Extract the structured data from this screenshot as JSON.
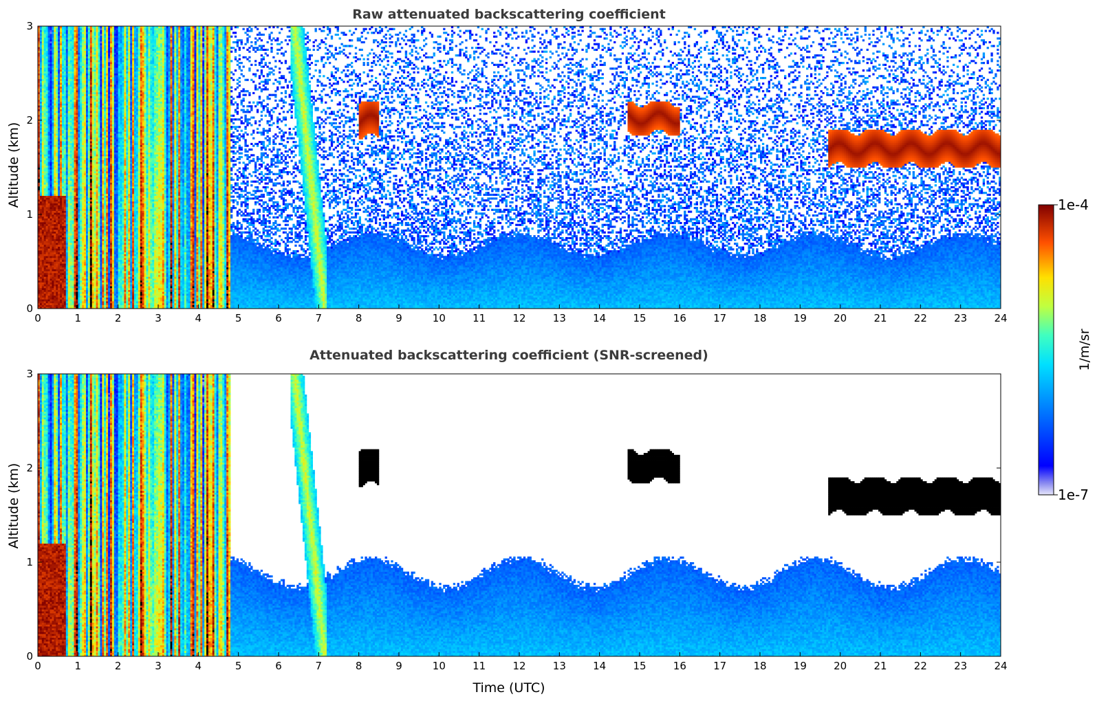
{
  "chart_data": [
    {
      "type": "heatmap",
      "title": "Raw attenuated backscattering coefficient",
      "xlabel": "",
      "ylabel": "Altitude (km)",
      "xlim": [
        0,
        24
      ],
      "ylim": [
        0,
        3
      ],
      "xticks": [
        "0",
        "1",
        "2",
        "3",
        "4",
        "5",
        "6",
        "7",
        "8",
        "9",
        "10",
        "11",
        "12",
        "13",
        "14",
        "15",
        "16",
        "17",
        "18",
        "19",
        "20",
        "21",
        "22",
        "23",
        "24"
      ],
      "yticks": [
        "0",
        "1",
        "2",
        "3"
      ],
      "grid": false,
      "screened": false,
      "features": [
        {
          "kind": "rain_or_fall_streaks",
          "x": [
            0,
            4.8
          ],
          "y": [
            0,
            3
          ]
        },
        {
          "kind": "fall_streak",
          "x": [
            6.3,
            7.2
          ],
          "y": [
            0,
            3
          ]
        },
        {
          "kind": "cloud",
          "x": [
            8.0,
            8.5
          ],
          "y": [
            1.8,
            2.2
          ]
        },
        {
          "kind": "cloud",
          "x": [
            14.7,
            16.0
          ],
          "y": [
            1.85,
            2.2
          ]
        },
        {
          "kind": "cloud_layer",
          "x": [
            19.7,
            24.0
          ],
          "y": [
            1.5,
            1.9
          ]
        },
        {
          "kind": "boundary_layer",
          "x": [
            3.3,
            24.0
          ],
          "y": [
            0,
            0.8
          ]
        }
      ]
    },
    {
      "type": "heatmap",
      "title": "Attenuated backscattering coefficient (SNR-screened)",
      "xlabel": "Time (UTC)",
      "ylabel": "Altitude (km)",
      "xlim": [
        0,
        24
      ],
      "ylim": [
        0,
        3
      ],
      "xticks": [
        "0",
        "1",
        "2",
        "3",
        "4",
        "5",
        "6",
        "7",
        "8",
        "9",
        "10",
        "11",
        "12",
        "13",
        "14",
        "15",
        "16",
        "17",
        "18",
        "19",
        "20",
        "21",
        "22",
        "23",
        "24"
      ],
      "yticks": [
        "0",
        "1",
        "2",
        "3"
      ],
      "grid": false,
      "screened": true,
      "features": [
        {
          "kind": "rain_or_fall_streaks",
          "x": [
            0,
            4.8
          ],
          "y": [
            0,
            3
          ]
        },
        {
          "kind": "fall_streak",
          "x": [
            6.3,
            7.2
          ],
          "y": [
            0,
            3
          ]
        },
        {
          "kind": "cloud",
          "x": [
            8.0,
            8.5
          ],
          "y": [
            1.8,
            2.2
          ]
        },
        {
          "kind": "cloud",
          "x": [
            14.7,
            16.0
          ],
          "y": [
            1.85,
            2.2
          ]
        },
        {
          "kind": "cloud_layer",
          "x": [
            19.7,
            24.0
          ],
          "y": [
            1.5,
            1.9
          ]
        },
        {
          "kind": "boundary_layer",
          "x": [
            3.3,
            24.0
          ],
          "y": [
            0,
            1.05
          ]
        }
      ]
    }
  ],
  "colorbar": {
    "label": "1/m/sr",
    "max_label": "1e-4",
    "min_label": "1e-7",
    "range": [
      1e-07,
      0.0001
    ],
    "scale": "log",
    "colormap": "jet"
  }
}
